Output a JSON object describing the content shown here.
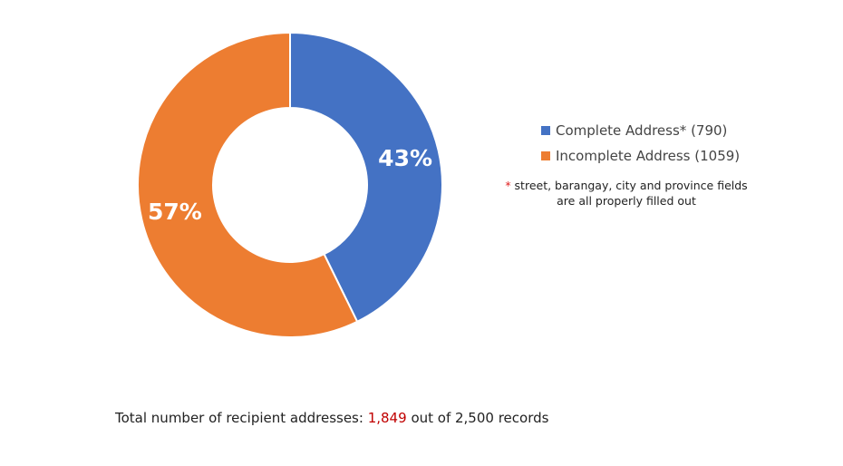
{
  "chart_data": {
    "type": "pie",
    "donut": true,
    "slices": [
      {
        "name": "Complete Address* (790)",
        "value": 790,
        "percent_label": "43%",
        "color": "#4472C4"
      },
      {
        "name": "Incomplete Address (1059)",
        "value": 1059,
        "percent_label": "57%",
        "color": "#ED7D31"
      }
    ],
    "legend_placement": "right"
  },
  "legend_note": {
    "asterisk": "*",
    "line1": "street, barangay, city and province fields",
    "line2": "are all properly filled out"
  },
  "total": {
    "prefix": "Total number of recipient addresses:",
    "value": "1,849",
    "suffix": "out of 2,500 records"
  }
}
